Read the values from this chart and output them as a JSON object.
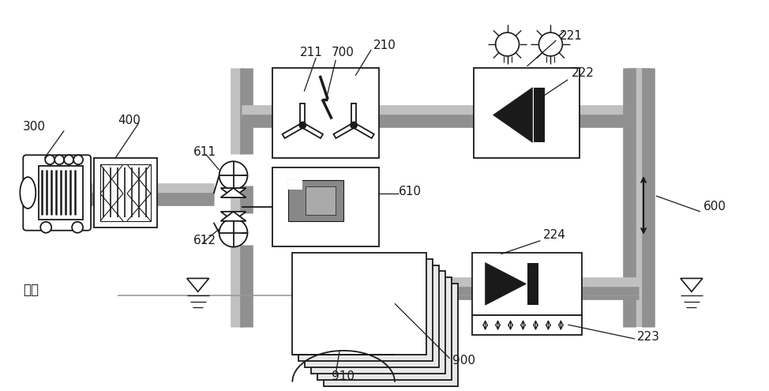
{
  "bg": "#ffffff",
  "lc": "#1a1a1a",
  "gray_pipe": "#c0c0c0",
  "gray_pipe_dark": "#909090",
  "box_fill": "#ffffff",
  "dark_gray": "#888888",
  "light_gray_fill": "#e0e0e0",
  "medium_gray": "#b0b0b0"
}
